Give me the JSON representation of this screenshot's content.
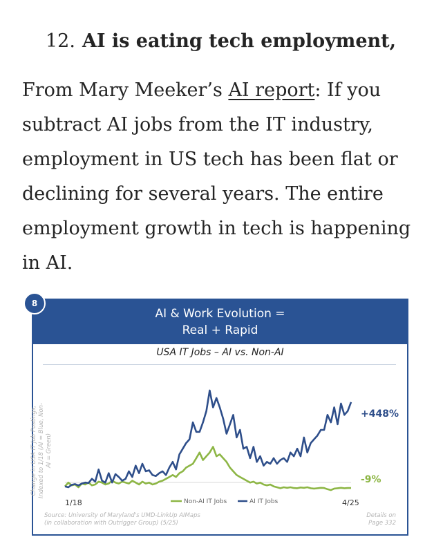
{
  "article": {
    "heading_number": "12.",
    "heading_title": "AI is eating tech employment,",
    "para_lead": "From Mary Meeker’s ",
    "para_link": "AI report",
    "para_rest": ": If you subtract AI jobs from the IT industry, employment in US tech has been flat or declining for several years. The entire employment growth in tech is happening in AI."
  },
  "slide": {
    "badge": "8",
    "banner_line1": "AI & Work Evolution =",
    "banner_line2": "Real + Rapid",
    "subtitle": "USA IT Jobs – AI vs. Non-AI",
    "ylabel": "Change in USA IT Job Postings, Indexed to 1/18 (AI = Blue, Non-AI = Green)",
    "source": "Source: University of Maryland's UMD-LinkUp AIMaps (in collaboration with Outrigger Group) (5/25)",
    "details_line1": "Details on",
    "details_line2": "Page 332",
    "colors": {
      "banner": "#2a5394",
      "ai": "#2e4e8a",
      "non_ai": "#8db645"
    }
  },
  "chart_data": {
    "type": "line",
    "title": "USA IT Jobs – AI vs. Non-AI",
    "ylabel": "Change in USA IT Job Postings, Indexed to 1/18 (AI = Blue, Non-AI = Green)",
    "x_start_label": "1/18",
    "x_end_label": "4/25",
    "ylim": [
      -60,
      550
    ],
    "legend_placement": "bottom-center",
    "series": [
      {
        "name": "AI IT Jobs",
        "end_label": "+448%",
        "values": [
          0,
          -5,
          8,
          12,
          5,
          15,
          20,
          18,
          40,
          25,
          90,
          30,
          20,
          70,
          20,
          65,
          50,
          30,
          40,
          80,
          50,
          110,
          70,
          120,
          80,
          85,
          60,
          55,
          70,
          80,
          60,
          100,
          130,
          90,
          170,
          200,
          230,
          250,
          340,
          290,
          290,
          340,
          400,
          510,
          420,
          470,
          420,
          360,
          280,
          330,
          380,
          260,
          300,
          200,
          210,
          150,
          210,
          130,
          160,
          110,
          130,
          120,
          150,
          120,
          140,
          150,
          130,
          180,
          160,
          200,
          160,
          260,
          180,
          230,
          250,
          270,
          300,
          300,
          380,
          340,
          420,
          330,
          440,
          380,
          400,
          448
        ]
      },
      {
        "name": "Non-AI IT Jobs",
        "end_label": "-9%",
        "values": [
          0,
          20,
          5,
          10,
          -5,
          15,
          10,
          20,
          5,
          10,
          25,
          20,
          10,
          15,
          30,
          20,
          15,
          25,
          20,
          15,
          30,
          20,
          10,
          25,
          15,
          20,
          10,
          15,
          25,
          30,
          40,
          50,
          60,
          50,
          70,
          80,
          100,
          110,
          120,
          150,
          180,
          140,
          160,
          180,
          210,
          160,
          170,
          150,
          130,
          100,
          80,
          60,
          50,
          40,
          30,
          20,
          25,
          15,
          20,
          10,
          5,
          10,
          0,
          -5,
          -10,
          -5,
          -8,
          -5,
          -9,
          -10,
          -6,
          -8,
          -5,
          -10,
          -12,
          -10,
          -8,
          -9,
          -15,
          -20,
          -12,
          -10,
          -8,
          -10,
          -9,
          -9
        ]
      }
    ]
  }
}
